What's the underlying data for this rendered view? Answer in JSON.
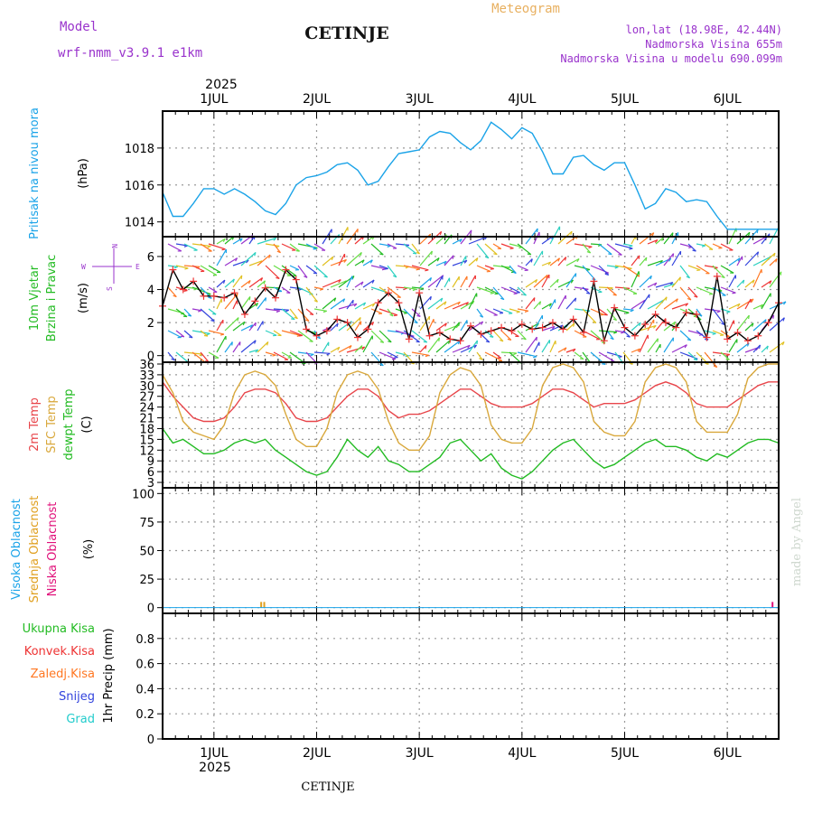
{
  "header": {
    "model_label": "Model",
    "model_name": "wrf-nmm_v3.9.1 e1km",
    "station": "CETINJE",
    "meteogram": "Meteogram",
    "lonlat": "lon,lat (18.98E, 42.44N)",
    "elevation": "Nadmorska Visina 655m",
    "model_elevation": "Nadmorska Visina u modelu 690.099m"
  },
  "footer": {
    "station": "CETINJE",
    "credit": "made by Angel"
  },
  "time_axis": {
    "year": "2025",
    "day_labels": [
      "1JUL",
      "2JUL",
      "3JUL",
      "4JUL",
      "5JUL",
      "6JUL"
    ],
    "day_positions": [
      1,
      2,
      3,
      4,
      5,
      6
    ],
    "range": [
      0.5,
      6.5
    ]
  },
  "panels": {
    "pressure": {
      "title": "Pritisak na nivou mora",
      "unit": "(hPa)"
    },
    "wind": {
      "title1": "10m Vjetar",
      "title2": "Brzina i Pravac",
      "unit": "(m/s)",
      "compass_row1": "N",
      "compass_row2": "W",
      "compass_row3": "E",
      "compass_left": "S"
    },
    "temperature": {
      "title1": "2m Temp",
      "title2": "SFC Temp",
      "title3": "dewpt Temp",
      "unit": "(C)"
    },
    "cloud": {
      "title1": "Visoka Oblacnost",
      "title2": "Srednja Oblacnost",
      "title3": "Niska Oblacnost",
      "unit": "(%)"
    },
    "precip": {
      "legend": [
        "Ukupna Kisa",
        "Konvek.Kisa",
        "Zaledj.Kisa",
        "Snijeg",
        "Grad"
      ],
      "ylabel": "1hr Precip (mm)"
    }
  },
  "colors": {
    "pressure": "#1aa3e8",
    "temp2m": "#e8464b",
    "sfc": "#d9a83c",
    "dew": "#22bb22",
    "high_cloud": "#1aa3e8",
    "mid_cloud": "#e0a020",
    "low_cloud": "#e0107a",
    "rain": "#22bb22",
    "conv": "#ee3333",
    "frz": "#ff7722",
    "snow": "#3344dd",
    "hail": "#22cccc",
    "header_purple": "#9933cc",
    "header_orange": "#e8b060"
  },
  "chart_data": [
    {
      "type": "line",
      "panel": "pressure",
      "title": "Pritisak na nivou mora",
      "ylabel": "(hPa)",
      "ylim": [
        1013.2,
        1020.0
      ],
      "yticks": [
        1014,
        1016,
        1018
      ],
      "grid": true,
      "series": [
        {
          "x": [
            0.5,
            0.6,
            0.7,
            0.8,
            0.9,
            1.0,
            1.1,
            1.2,
            1.3,
            1.4,
            1.5,
            1.6,
            1.7,
            1.8,
            1.9,
            2.0,
            2.1,
            2.2,
            2.3,
            2.4,
            2.5,
            2.6,
            2.7,
            2.8,
            2.9,
            3.0,
            3.1,
            3.2,
            3.3,
            3.4,
            3.5,
            3.6,
            3.7,
            3.8,
            3.9,
            4.0,
            4.1,
            4.2,
            4.3,
            4.4,
            4.5,
            4.6,
            4.7,
            4.8,
            4.9,
            5.0,
            5.1,
            5.2,
            5.3,
            5.4,
            5.5,
            5.6,
            5.7,
            5.8,
            5.9,
            6.0,
            6.1,
            6.2,
            6.3,
            6.4,
            6.5
          ],
          "values": [
            1015.6,
            1014.3,
            1014.3,
            1015.0,
            1015.8,
            1015.8,
            1015.5,
            1015.8,
            1015.5,
            1015.1,
            1014.6,
            1014.4,
            1015.0,
            1016.0,
            1016.4,
            1016.5,
            1016.7,
            1017.1,
            1017.2,
            1016.8,
            1016.0,
            1016.2,
            1017.0,
            1017.7,
            1017.8,
            1017.9,
            1018.6,
            1018.9,
            1018.8,
            1018.3,
            1017.9,
            1018.4,
            1019.4,
            1019.0,
            1018.5,
            1019.1,
            1018.8,
            1017.8,
            1016.6,
            1016.6,
            1017.5,
            1017.6,
            1017.1,
            1016.8,
            1017.2,
            1017.2,
            1016.0,
            1014.7,
            1015.0,
            1015.8,
            1015.6,
            1015.1,
            1015.2,
            1015.1,
            1014.3,
            1013.6,
            1013.6,
            1013.6,
            1013.6,
            1013.6,
            1013.6
          ]
        }
      ]
    },
    {
      "type": "line",
      "panel": "wind",
      "title": "10m Vjetar Brzina i Pravac",
      "ylabel": "(m/s)",
      "ylim": [
        -0.4,
        7.2
      ],
      "yticks": [
        0,
        2,
        4,
        6
      ],
      "grid": true,
      "series": [
        {
          "name": "wind speed",
          "x": [
            0.5,
            0.6,
            0.7,
            0.8,
            0.9,
            1.0,
            1.1,
            1.2,
            1.3,
            1.4,
            1.5,
            1.6,
            1.7,
            1.8,
            1.9,
            2.0,
            2.1,
            2.2,
            2.3,
            2.4,
            2.5,
            2.6,
            2.7,
            2.8,
            2.9,
            3.0,
            3.1,
            3.2,
            3.3,
            3.4,
            3.5,
            3.6,
            3.7,
            3.8,
            3.9,
            4.0,
            4.1,
            4.2,
            4.3,
            4.4,
            4.5,
            4.6,
            4.7,
            4.8,
            4.9,
            5.0,
            5.1,
            5.2,
            5.3,
            5.4,
            5.5,
            5.6,
            5.7,
            5.8,
            5.9,
            6.0,
            6.1,
            6.2,
            6.3,
            6.4,
            6.5
          ],
          "values": [
            3.0,
            5.2,
            4.0,
            4.5,
            3.6,
            3.6,
            3.5,
            3.8,
            2.5,
            3.3,
            4.1,
            3.5,
            5.2,
            4.6,
            1.6,
            1.2,
            1.5,
            2.2,
            2.0,
            1.1,
            1.6,
            3.2,
            3.8,
            3.2,
            1.0,
            3.8,
            1.2,
            1.4,
            1.0,
            0.9,
            1.8,
            1.3,
            1.5,
            1.7,
            1.5,
            1.9,
            1.6,
            1.7,
            2.0,
            1.6,
            2.2,
            1.4,
            4.5,
            0.9,
            2.9,
            1.7,
            1.2,
            1.9,
            2.5,
            2.0,
            1.7,
            2.6,
            2.5,
            1.1,
            4.8,
            1.0,
            1.4,
            0.9,
            1.2,
            2.0,
            3.2
          ]
        }
      ]
    },
    {
      "type": "line",
      "panel": "temperature",
      "title": "2m Temp / SFC Temp / dewpt Temp",
      "ylabel": "(C)",
      "ylim": [
        1.5,
        36.5
      ],
      "yticks": [
        3,
        6,
        9,
        12,
        15,
        18,
        21,
        24,
        27,
        30,
        33,
        36
      ],
      "grid": true,
      "series": [
        {
          "name": "2m Temp",
          "x": [
            0.5,
            0.6,
            0.7,
            0.8,
            0.9,
            1.0,
            1.1,
            1.2,
            1.3,
            1.4,
            1.5,
            1.6,
            1.7,
            1.8,
            1.9,
            2.0,
            2.1,
            2.2,
            2.3,
            2.4,
            2.5,
            2.6,
            2.7,
            2.8,
            2.9,
            3.0,
            3.1,
            3.2,
            3.3,
            3.4,
            3.5,
            3.6,
            3.7,
            3.8,
            3.9,
            4.0,
            4.1,
            4.2,
            4.3,
            4.4,
            4.5,
            4.6,
            4.7,
            4.8,
            4.9,
            5.0,
            5.1,
            5.2,
            5.3,
            5.4,
            5.5,
            5.6,
            5.7,
            5.8,
            5.9,
            6.0,
            6.1,
            6.2,
            6.3,
            6.4,
            6.5
          ],
          "values": [
            31,
            27,
            24,
            21,
            20,
            20,
            21,
            24,
            28,
            29,
            29,
            28,
            25,
            21,
            20,
            20,
            21,
            24,
            27,
            29,
            29,
            27,
            23,
            21,
            22,
            22,
            23,
            25,
            27,
            29,
            29,
            27,
            25,
            24,
            24,
            24,
            25,
            27,
            29,
            29,
            28,
            26,
            24,
            25,
            25,
            25,
            26,
            28,
            30,
            31,
            30,
            28,
            25,
            24,
            24,
            24,
            26,
            28,
            30,
            31,
            31
          ]
        },
        {
          "name": "SFC Temp",
          "x": [
            0.5,
            0.6,
            0.7,
            0.8,
            0.9,
            1.0,
            1.1,
            1.2,
            1.3,
            1.4,
            1.5,
            1.6,
            1.7,
            1.8,
            1.9,
            2.0,
            2.1,
            2.2,
            2.3,
            2.4,
            2.5,
            2.6,
            2.7,
            2.8,
            2.9,
            3.0,
            3.1,
            3.2,
            3.3,
            3.4,
            3.5,
            3.6,
            3.7,
            3.8,
            3.9,
            4.0,
            4.1,
            4.2,
            4.3,
            4.4,
            4.5,
            4.6,
            4.7,
            4.8,
            4.9,
            5.0,
            5.1,
            5.2,
            5.3,
            5.4,
            5.5,
            5.6,
            5.7,
            5.8,
            5.9,
            6.0,
            6.1,
            6.2,
            6.3,
            6.4,
            6.5
          ],
          "values": [
            33,
            28,
            20,
            17,
            16,
            15,
            19,
            28,
            33,
            34,
            33,
            30,
            22,
            15,
            13,
            13,
            18,
            28,
            33,
            34,
            33,
            29,
            20,
            14,
            12,
            12,
            16,
            28,
            33,
            35,
            34,
            30,
            19,
            15,
            14,
            14,
            18,
            30,
            35,
            36,
            35,
            31,
            20,
            17,
            16,
            16,
            20,
            31,
            35,
            36,
            35,
            31,
            20,
            17,
            17,
            17,
            22,
            32,
            35,
            36,
            36
          ]
        },
        {
          "name": "dewpt Temp",
          "x": [
            0.5,
            0.6,
            0.7,
            0.8,
            0.9,
            1.0,
            1.1,
            1.2,
            1.3,
            1.4,
            1.5,
            1.6,
            1.7,
            1.8,
            1.9,
            2.0,
            2.1,
            2.2,
            2.3,
            2.4,
            2.5,
            2.6,
            2.7,
            2.8,
            2.9,
            3.0,
            3.1,
            3.2,
            3.3,
            3.4,
            3.5,
            3.6,
            3.7,
            3.8,
            3.9,
            4.0,
            4.1,
            4.2,
            4.3,
            4.4,
            4.5,
            4.6,
            4.7,
            4.8,
            4.9,
            5.0,
            5.1,
            5.2,
            5.3,
            5.4,
            5.5,
            5.6,
            5.7,
            5.8,
            5.9,
            6.0,
            6.1,
            6.2,
            6.3,
            6.4,
            6.5
          ],
          "values": [
            18,
            14,
            15,
            13,
            11,
            11,
            12,
            14,
            15,
            14,
            15,
            12,
            10,
            8,
            6,
            5,
            6,
            10,
            15,
            12,
            10,
            13,
            9,
            8,
            6,
            6,
            8,
            10,
            14,
            15,
            12,
            9,
            11,
            7,
            5,
            4,
            6,
            9,
            12,
            14,
            15,
            12,
            9,
            7,
            8,
            10,
            12,
            14,
            15,
            13,
            13,
            12,
            10,
            9,
            11,
            10,
            12,
            14,
            15,
            15,
            14
          ]
        }
      ]
    },
    {
      "type": "bar",
      "panel": "cloud",
      "title": "Visoka / Srednja / Niska Oblacnost",
      "ylabel": "(%)",
      "ylim": [
        -5,
        105
      ],
      "yticks": [
        0,
        25,
        50,
        75,
        100
      ],
      "grid": true,
      "series": [
        {
          "name": "Srednja Oblacnost",
          "x": [
            1.46,
            1.49
          ],
          "values": [
            5,
            5
          ]
        },
        {
          "name": "Niska Oblacnost",
          "x": [
            6.44
          ],
          "values": [
            5
          ]
        }
      ]
    },
    {
      "type": "bar",
      "panel": "precip",
      "title": "1hr Precip",
      "ylabel": "1hr Precip (mm)",
      "ylim": [
        0,
        1.0
      ],
      "yticks": [
        0,
        0.2,
        0.4,
        0.6,
        0.8
      ],
      "grid": true,
      "series": [
        {
          "name": "Ukupna Kisa",
          "x": [],
          "values": []
        }
      ]
    }
  ]
}
